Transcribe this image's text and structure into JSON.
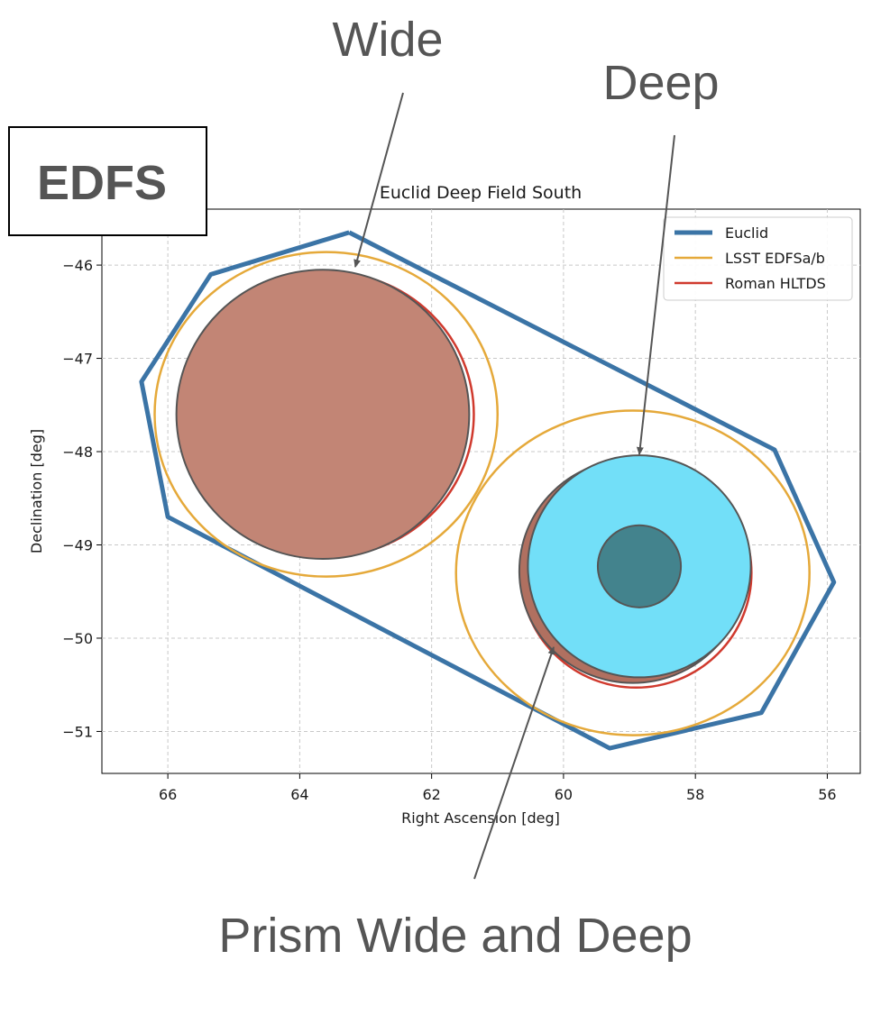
{
  "labels": {
    "wide": "Wide",
    "deep": "Deep",
    "prism": "Prism Wide and Deep",
    "box": "EDFS"
  },
  "chart_data": {
    "type": "scatter",
    "title": "Euclid Deep Field South",
    "xlabel": "Right Ascension [deg]",
    "ylabel": "Declination [deg]",
    "xlim": [
      67.0,
      55.5
    ],
    "ylim": [
      -51.45,
      -45.4
    ],
    "x_inverted": true,
    "grid": true,
    "legend_position": "top-right",
    "xticks": [
      66,
      64,
      62,
      60,
      58,
      56
    ],
    "yticks": [
      -46,
      -47,
      -48,
      -49,
      -50,
      -51
    ],
    "xtick_labels": [
      "66",
      "64",
      "62",
      "60",
      "58",
      "56"
    ],
    "ytick_labels": [
      "−46",
      "−47",
      "−48",
      "−49",
      "−50",
      "−51"
    ],
    "legend": [
      {
        "name": "Euclid",
        "color": "#3b74a6"
      },
      {
        "name": "LSST EDFSa/b",
        "color": "#e5a93a"
      },
      {
        "name": "Roman HLTDS",
        "color": "#d03a2e"
      }
    ],
    "euclid_outline": {
      "color": "#3b74a6",
      "ra": [
        63.25,
        65.35,
        66.4,
        66.0,
        59.3,
        57.0,
        55.9,
        56.8,
        63.25
      ],
      "dec": [
        -45.65,
        -46.1,
        -47.25,
        -48.7,
        -51.18,
        -50.8,
        -49.4,
        -47.98,
        -45.65
      ]
    },
    "lsst_circles": [
      {
        "ra": 63.6,
        "dec": -47.6,
        "rx": 2.6,
        "ry": 1.74
      },
      {
        "ra": 58.95,
        "dec": -49.3,
        "rx": 2.68,
        "ry": 1.74
      }
    ],
    "roman_circles": [
      {
        "ra": 63.6,
        "dec": -47.6,
        "rx": 2.24,
        "ry": 1.53
      },
      {
        "ra": 58.9,
        "dec": -49.3,
        "rx": 1.75,
        "ry": 1.23
      }
    ],
    "filled_regions": [
      {
        "name": "wide",
        "ra": 63.65,
        "dec": -47.6,
        "rx": 2.22,
        "ry": 1.55,
        "color": "#c28575"
      },
      {
        "name": "prism-wide",
        "ra": 58.95,
        "dec": -49.28,
        "rx": 1.72,
        "ry": 1.2,
        "color": "#b07060"
      },
      {
        "name": "deep",
        "ra": 58.85,
        "dec": -49.23,
        "rx": 1.69,
        "ry": 1.19,
        "color": "#72dff8"
      },
      {
        "name": "prism-deep",
        "ra": 58.85,
        "dec": -49.23,
        "rx": 0.63,
        "ry": 0.44,
        "color": "#43838d"
      }
    ]
  }
}
